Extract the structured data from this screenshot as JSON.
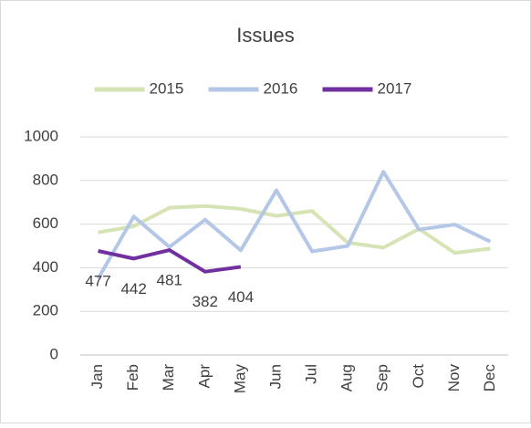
{
  "chart_data": {
    "type": "line",
    "title": "Issues",
    "categories": [
      "Jan",
      "Feb",
      "Mar",
      "Apr",
      "May",
      "Jun",
      "Jul",
      "Aug",
      "Sep",
      "Oct",
      "Nov",
      "Dec"
    ],
    "series": [
      {
        "name": "2015",
        "color": "#d5e3b5",
        "values": [
          562,
          590,
          675,
          683,
          670,
          638,
          660,
          515,
          492,
          578,
          468,
          488
        ]
      },
      {
        "name": "2016",
        "color": "#b4c7e7",
        "values": [
          350,
          635,
          495,
          620,
          480,
          755,
          475,
          500,
          840,
          575,
          598,
          520
        ]
      },
      {
        "name": "2017",
        "color": "#7030a0",
        "values": [
          477,
          442,
          481,
          382,
          404,
          null,
          null,
          null,
          null,
          null,
          null,
          null
        ],
        "data_labels": true
      }
    ],
    "ylim": [
      0,
      1000
    ],
    "yticks": [
      0,
      200,
      400,
      600,
      800,
      1000
    ],
    "grid": true,
    "legend": "top"
  }
}
